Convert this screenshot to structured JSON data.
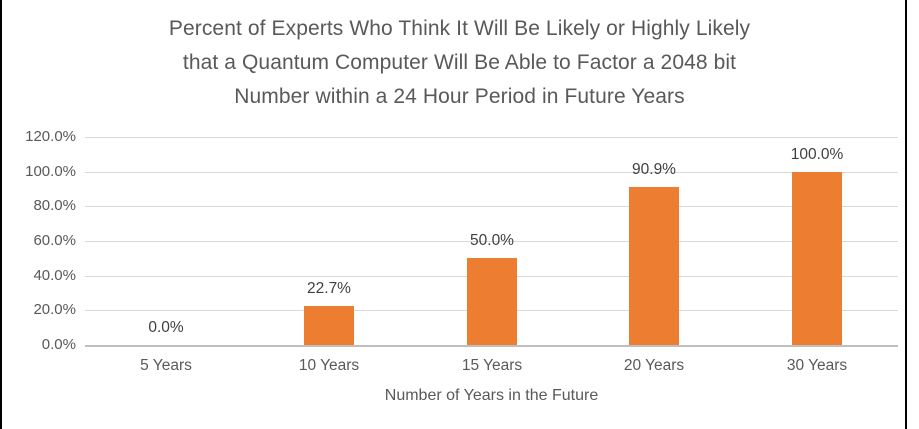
{
  "chart_data": {
    "type": "bar",
    "title": "Percent of Experts Who Think It Will Be Likely or Highly Likely that a Quantum Computer Will Be Able to Factor a 2048 bit Number within a 24 Hour Period in Future Years",
    "title_lines": [
      "Percent of Experts Who Think It Will Be Likely or Highly Likely",
      "that a Quantum Computer Will Be Able to Factor a 2048 bit",
      "Number within a 24 Hour Period in Future Years"
    ],
    "categories": [
      "5 Years",
      "10 Years",
      "15 Years",
      "20 Years",
      "30 Years"
    ],
    "values": [
      0.0,
      22.7,
      50.0,
      90.9,
      100.0
    ],
    "data_labels": [
      "0.0%",
      "22.7%",
      "50.0%",
      "90.9%",
      "100.0%"
    ],
    "xlabel": "Number of Years in the Future",
    "ylabel": "",
    "ylim": [
      0,
      120
    ],
    "ytick_step": 20,
    "yticks_top_to_bottom": [
      "120.0%",
      "100.0%",
      "80.0%",
      "60.0%",
      "40.0%",
      "20.0%",
      "0.0%"
    ],
    "grid": true,
    "legend_position": "none",
    "colors": {
      "bar": "#ED7D31",
      "gridline": "#D9D9D9",
      "axis_line": "#BFBFBF",
      "title_text": "#595959",
      "tick_text": "#595959",
      "data_label_text": "#404040",
      "frame_border": "#000000"
    }
  }
}
